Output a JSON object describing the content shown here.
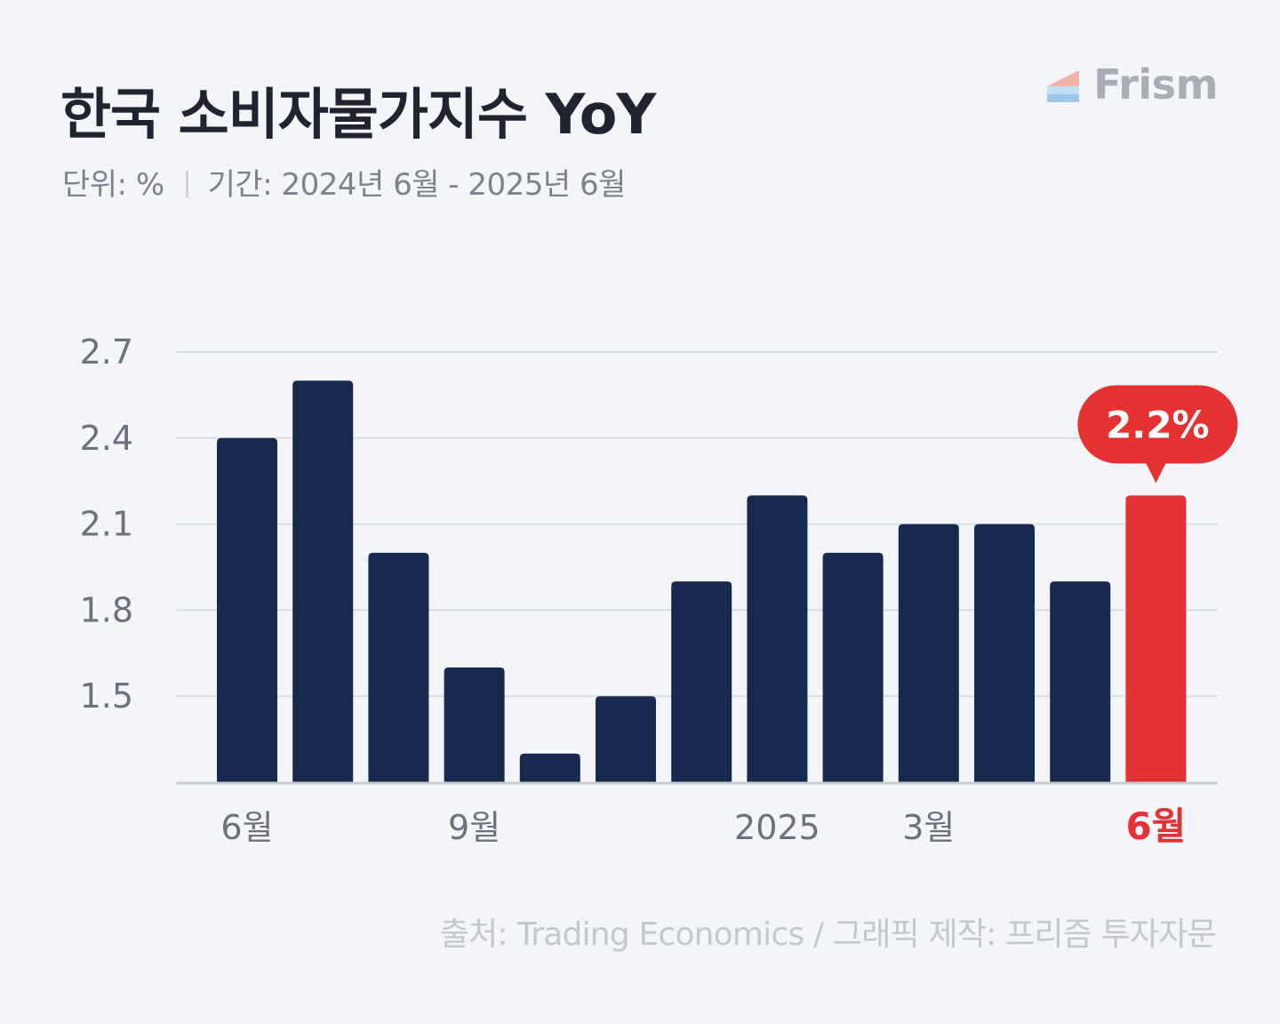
{
  "header": {
    "title": "한국 소비자물가지수 YoY",
    "unit_label": "단위: %",
    "period_label": "기간: 2024년 6월 - 2025년 6월",
    "logo_text": "Frism"
  },
  "footer": {
    "source": "출처: Trading Economics  / 그래픽 제작: 프리즘 투자자문"
  },
  "colors": {
    "bar": "#162a50",
    "highlight": "#e43132",
    "grid": "#d6dae1",
    "axis": "#c9ced6",
    "tick_text": "#6c727c"
  },
  "chart_data": {
    "type": "bar",
    "categories": [
      "2024-06",
      "2024-07",
      "2024-08",
      "2024-09",
      "2024-10",
      "2024-11",
      "2024-12",
      "2025-01",
      "2025-02",
      "2025-03",
      "2025-04",
      "2025-05",
      "2025-06"
    ],
    "values": [
      2.4,
      2.6,
      2.0,
      1.6,
      1.3,
      1.5,
      1.9,
      2.2,
      2.0,
      2.1,
      2.1,
      1.9,
      2.2
    ],
    "x_tick_labels": [
      "6월",
      "",
      "",
      "9월",
      "",
      "",
      "",
      "2025",
      "",
      "3월",
      "",
      "",
      "6월"
    ],
    "y_ticks": [
      "1.5",
      "1.8",
      "2.1",
      "2.4",
      "2.7"
    ],
    "ylim": [
      1.2,
      2.7
    ],
    "highlight_index": 12,
    "callout_label": "2.2%",
    "grid": true,
    "legend": "none"
  }
}
